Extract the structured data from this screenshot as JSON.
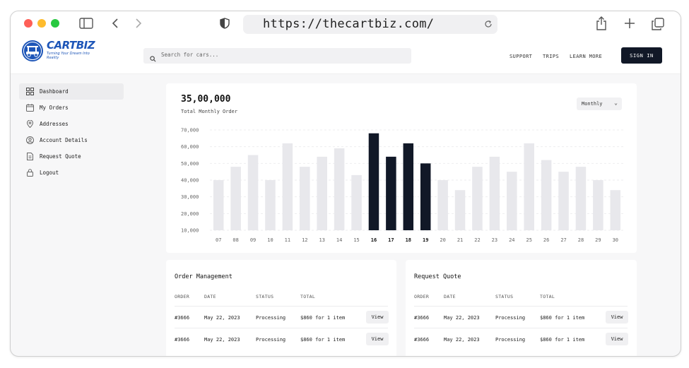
{
  "browser": {
    "url": "https://thecartbiz.com/"
  },
  "header": {
    "logo_text": "CARTBIZ",
    "logo_tagline": "Turning Your Dream Into Reality",
    "search_placeholder": "Search for cars...",
    "nav": [
      "SUPPORT",
      "TRIPS",
      "LEARN MORE"
    ],
    "sign_in": "SIGN IN"
  },
  "sidebar": {
    "items": [
      {
        "label": "Dashboard",
        "icon": "grid-icon",
        "active": true
      },
      {
        "label": "My Orders",
        "icon": "calendar-icon",
        "active": false
      },
      {
        "label": "Addresses",
        "icon": "map-pin-icon",
        "active": false
      },
      {
        "label": "Account Details",
        "icon": "user-circle-icon",
        "active": false
      },
      {
        "label": "Request Quote",
        "icon": "document-icon",
        "active": false
      },
      {
        "label": "Logout",
        "icon": "lock-icon",
        "active": false
      }
    ]
  },
  "summary": {
    "total": "35,00,000",
    "label": "Total Monthly Order",
    "period": "Monthly"
  },
  "chart_data": {
    "type": "bar",
    "categories": [
      "07",
      "08",
      "09",
      "10",
      "11",
      "12",
      "13",
      "14",
      "15",
      "16",
      "17",
      "18",
      "19",
      "20",
      "21",
      "22",
      "23",
      "24",
      "25",
      "26",
      "27",
      "28",
      "29",
      "30"
    ],
    "values": [
      40000,
      48000,
      55000,
      40000,
      62000,
      48000,
      54000,
      59000,
      43000,
      68000,
      54000,
      62000,
      50000,
      40000,
      34000,
      48000,
      54000,
      45000,
      62000,
      52000,
      45000,
      48000,
      40000,
      34000
    ],
    "highlighted": [
      "16",
      "17",
      "18",
      "19"
    ],
    "yticks": [
      "10,000",
      "20,000",
      "30,000",
      "40,000",
      "50,000",
      "60,000",
      "70,000"
    ],
    "ylim": [
      10000,
      70000
    ],
    "colors": {
      "bar": "#e8e8ec",
      "highlight": "#111827"
    }
  },
  "order_management": {
    "title": "Order Management",
    "columns": [
      "ORDER",
      "DATE",
      "STATUS",
      "TOTAL"
    ],
    "rows": [
      {
        "order": "#3666",
        "date": "May 22, 2023",
        "status": "Processing",
        "total": "$860 for 1 item",
        "action": "View"
      },
      {
        "order": "#3666",
        "date": "May 22, 2023",
        "status": "Processing",
        "total": "$860 for 1 item",
        "action": "View"
      }
    ]
  },
  "request_quote": {
    "title": "Request Quote",
    "columns": [
      "ORDER",
      "DATE",
      "STATUS",
      "TOTAL"
    ],
    "rows": [
      {
        "order": "#3666",
        "date": "May 22, 2023",
        "status": "Processing",
        "total": "$860 for 1 item",
        "action": "View"
      },
      {
        "order": "#3666",
        "date": "May 22, 2023",
        "status": "Processing",
        "total": "$860 for 1 item",
        "action": "View"
      }
    ]
  }
}
